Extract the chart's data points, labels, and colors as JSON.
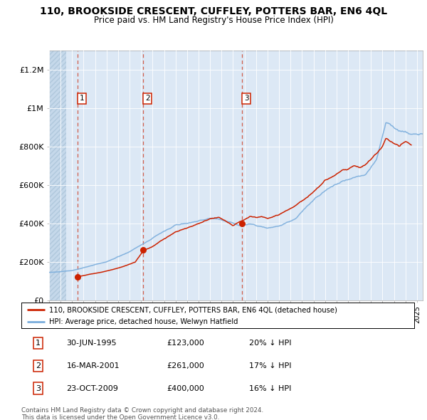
{
  "title": "110, BROOKSIDE CRESCENT, CUFFLEY, POTTERS BAR, EN6 4QL",
  "subtitle": "Price paid vs. HM Land Registry's House Price Index (HPI)",
  "transactions": [
    {
      "num": 1,
      "date": "30-JUN-1995",
      "price": 123000,
      "x_year": 1995.5,
      "hpi_pct": "20% ↓ HPI"
    },
    {
      "num": 2,
      "date": "16-MAR-2001",
      "price": 261000,
      "x_year": 2001.2,
      "hpi_pct": "17% ↓ HPI"
    },
    {
      "num": 3,
      "date": "23-OCT-2009",
      "price": 400000,
      "x_year": 2009.8,
      "hpi_pct": "16% ↓ HPI"
    }
  ],
  "legend_line1": "110, BROOKSIDE CRESCENT, CUFFLEY, POTTERS BAR, EN6 4QL (detached house)",
  "legend_line2": "HPI: Average price, detached house, Welwyn Hatfield",
  "footnote1": "Contains HM Land Registry data © Crown copyright and database right 2024.",
  "footnote2": "This data is licensed under the Open Government Licence v3.0.",
  "hpi_color": "#7aaddc",
  "price_color": "#cc2200",
  "background_color": "#dce8f5",
  "ylim": [
    0,
    1300000
  ],
  "xlim_start": 1993.0,
  "xlim_end": 2025.5,
  "yticks": [
    0,
    200000,
    400000,
    600000,
    800000,
    1000000,
    1200000
  ],
  "ylabels": [
    "£0",
    "£200K",
    "£400K",
    "£600K",
    "£800K",
    "£1M",
    "£1.2M"
  ],
  "rows": [
    [
      1,
      "30-JUN-1995",
      "£123,000",
      "20% ↓ HPI"
    ],
    [
      2,
      "16-MAR-2001",
      "£261,000",
      "17% ↓ HPI"
    ],
    [
      3,
      "23-OCT-2009",
      "£400,000",
      "16% ↓ HPI"
    ]
  ]
}
